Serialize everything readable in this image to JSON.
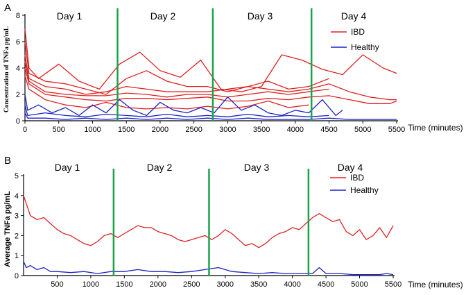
{
  "chart_data": [
    {
      "type": "line",
      "panel_label": "A",
      "ylabel": "Concentration of TNFa pg/mL",
      "xlabel": "Time (minutes)",
      "xlim": [
        0,
        5500
      ],
      "ylim": [
        0,
        8
      ],
      "xticks": [
        0,
        500,
        1000,
        1500,
        2000,
        2500,
        3000,
        3500,
        4000,
        4500,
        5000,
        5500
      ],
      "yticks": [
        0,
        2,
        4,
        6,
        8
      ],
      "day_labels": [
        "Day 1",
        "Day 2",
        "Day 3",
        "Day 4"
      ],
      "day_dividers": [
        1370,
        2780,
        4240
      ],
      "legend": [
        {
          "name": "IBD",
          "color": "#e02020"
        },
        {
          "name": "Healthy",
          "color": "#1a22c8"
        }
      ],
      "series": [
        {
          "name": "IBD",
          "group": "IBD",
          "color": "#e02020",
          "x": [
            0,
            60,
            200,
            500,
            800,
            1100,
            1400,
            1700,
            2000,
            2300,
            2600,
            2900,
            3200,
            3500,
            3800,
            4100,
            4400,
            4700,
            5000,
            5300,
            5500
          ],
          "y": [
            7.0,
            4.0,
            3.2,
            4.3,
            3.0,
            2.4,
            4.3,
            5.2,
            3.8,
            3.3,
            4.6,
            2.4,
            2.2,
            2.6,
            5.0,
            4.6,
            3.9,
            3.5,
            5.0,
            4.0,
            3.6
          ]
        },
        {
          "name": "IBD",
          "group": "IBD",
          "color": "#e02020",
          "x": [
            0,
            60,
            300,
            600,
            900,
            1200,
            1500,
            1800,
            2100,
            2400,
            2700,
            3000,
            3300,
            3600,
            3900,
            4200,
            4500
          ],
          "y": [
            6.0,
            3.6,
            3.0,
            2.8,
            2.4,
            2.0,
            3.2,
            3.8,
            3.0,
            2.6,
            2.6,
            2.2,
            2.6,
            3.0,
            2.4,
            2.6,
            3.2
          ]
        },
        {
          "name": "IBD",
          "group": "IBD",
          "color": "#e02020",
          "x": [
            0,
            60,
            300,
            600,
            900,
            1200,
            1500,
            1800,
            2100,
            2400,
            2700,
            3000,
            3300,
            3600,
            3900,
            4200,
            4500,
            4800,
            5100,
            5400,
            5500
          ],
          "y": [
            5.0,
            3.2,
            2.6,
            2.4,
            2.0,
            2.2,
            2.6,
            2.4,
            2.2,
            2.2,
            2.2,
            2.4,
            2.6,
            2.4,
            2.2,
            2.4,
            2.8,
            2.2,
            1.8,
            1.6,
            1.6
          ]
        },
        {
          "name": "IBD",
          "group": "IBD",
          "color": "#e02020",
          "x": [
            0,
            60,
            300,
            600,
            900,
            1200,
            1500,
            1800,
            2100,
            2400,
            2700,
            3000,
            3300,
            3600,
            3900,
            4200,
            4500
          ],
          "y": [
            4.5,
            3.0,
            2.2,
            2.0,
            1.9,
            1.9,
            2.1,
            2.0,
            1.8,
            2.0,
            2.0,
            1.8,
            2.0,
            2.2,
            2.0,
            2.2,
            2.4
          ]
        },
        {
          "name": "IBD",
          "group": "IBD",
          "color": "#e02020",
          "x": [
            0,
            60,
            300,
            600,
            900,
            1200,
            1500,
            1800,
            2100,
            2400,
            2700,
            3000,
            3300,
            3600,
            3900,
            4200,
            4500,
            4800,
            5100,
            5400,
            5500
          ],
          "y": [
            4.0,
            2.8,
            2.0,
            1.8,
            1.6,
            1.5,
            1.7,
            1.7,
            1.6,
            1.7,
            1.8,
            1.5,
            1.5,
            1.7,
            1.6,
            1.8,
            1.9,
            1.6,
            1.3,
            1.3,
            1.5
          ]
        },
        {
          "name": "IBD",
          "group": "IBD",
          "color": "#e02020",
          "x": [
            0,
            60,
            300,
            600,
            900,
            1200,
            1500,
            1800,
            2100,
            2400,
            2700,
            3000,
            3300,
            3600,
            3900,
            4200
          ],
          "y": [
            3.4,
            2.4,
            1.6,
            1.2,
            1.0,
            1.4,
            1.0,
            0.9,
            1.0,
            0.9,
            1.1,
            0.9,
            1.1,
            1.5,
            1.0,
            1.2
          ]
        },
        {
          "name": "Healthy",
          "group": "Healthy",
          "color": "#1a22c8",
          "x": [
            0,
            40,
            200,
            400,
            600,
            800,
            1000,
            1200,
            1400,
            1600,
            1800,
            2000,
            2200,
            2400,
            2600,
            2800,
            3000,
            3200,
            3400,
            3600,
            3800,
            4000,
            4200,
            4400,
            4600,
            4700
          ],
          "y": [
            2.0,
            0.8,
            1.2,
            0.6,
            1.0,
            0.4,
            1.2,
            0.6,
            1.6,
            0.8,
            0.4,
            1.4,
            0.8,
            0.6,
            1.0,
            0.6,
            1.8,
            0.8,
            1.2,
            0.6,
            0.4,
            0.8,
            0.6,
            1.6,
            0.4,
            0.8
          ]
        },
        {
          "name": "Healthy",
          "group": "Healthy",
          "color": "#1a22c8",
          "x": [
            0,
            40,
            300,
            600,
            900,
            1200,
            1500,
            1800,
            2100,
            2400,
            2700,
            3000,
            3300,
            3600,
            3900,
            4200,
            4500
          ],
          "y": [
            1.2,
            0.4,
            0.6,
            0.4,
            0.3,
            0.5,
            0.4,
            0.3,
            0.5,
            0.3,
            0.4,
            0.3,
            0.5,
            0.3,
            0.4,
            0.3,
            0.4
          ]
        },
        {
          "name": "Healthy",
          "group": "Healthy",
          "color": "#1a22c8",
          "x": [
            0,
            40,
            300,
            600,
            900,
            1200,
            1500,
            1800,
            2100,
            2400,
            2700,
            3000,
            3300,
            3600,
            3900,
            4200,
            4500,
            4800,
            5100,
            5400,
            5500
          ],
          "y": [
            0.6,
            0.2,
            0.2,
            0.1,
            0.2,
            0.1,
            0.2,
            0.1,
            0.2,
            0.1,
            0.2,
            0.1,
            0.2,
            0.1,
            0.1,
            0.1,
            0.2,
            0.1,
            0.1,
            0.1,
            0.1
          ]
        }
      ]
    },
    {
      "type": "line",
      "panel_label": "B",
      "ylabel": "Average TNFa pg/mL",
      "xlabel": "Time (minutes)",
      "xlim": [
        0,
        5500
      ],
      "ylim": [
        0,
        5
      ],
      "xticks": [
        500,
        1000,
        1500,
        2000,
        2500,
        3000,
        3500,
        4000,
        4500,
        5000,
        5500
      ],
      "yticks": [
        0,
        1,
        2,
        3,
        4,
        5
      ],
      "day_labels": [
        "Day 1",
        "Day 2",
        "Day 3",
        "Day 4"
      ],
      "day_dividers": [
        1340,
        2760,
        4240
      ],
      "legend": [
        {
          "name": "IBD",
          "color": "#e02020"
        },
        {
          "name": "Healthy",
          "color": "#1a22c8"
        }
      ],
      "series": [
        {
          "name": "IBD",
          "group": "IBD",
          "color": "#e02020",
          "x": [
            0,
            40,
            100,
            200,
            300,
            400,
            500,
            600,
            700,
            800,
            900,
            1000,
            1100,
            1200,
            1300,
            1400,
            1500,
            1600,
            1700,
            1800,
            1900,
            2000,
            2100,
            2200,
            2300,
            2400,
            2500,
            2600,
            2700,
            2800,
            2900,
            3000,
            3100,
            3200,
            3300,
            3400,
            3500,
            3600,
            3700,
            3800,
            3900,
            4000,
            4100,
            4200,
            4300,
            4400,
            4500,
            4600,
            4700,
            4800,
            4900,
            5000,
            5100,
            5200,
            5300,
            5400,
            5500
          ],
          "y": [
            4.0,
            3.6,
            3.0,
            2.8,
            2.9,
            2.6,
            2.3,
            2.1,
            2.0,
            1.8,
            1.6,
            1.5,
            1.7,
            2.0,
            2.1,
            1.9,
            2.1,
            2.3,
            2.5,
            2.4,
            2.4,
            2.2,
            2.1,
            2.0,
            1.8,
            1.7,
            1.8,
            1.9,
            2.0,
            1.8,
            2.0,
            2.3,
            2.1,
            1.8,
            1.5,
            1.6,
            1.4,
            1.6,
            1.9,
            2.1,
            2.2,
            2.4,
            2.3,
            2.6,
            2.9,
            3.1,
            2.9,
            2.7,
            2.8,
            2.2,
            2.0,
            2.3,
            1.8,
            2.0,
            2.4,
            1.9,
            2.5
          ]
        },
        {
          "name": "Healthy",
          "group": "Healthy",
          "color": "#1a22c8",
          "x": [
            0,
            40,
            100,
            200,
            300,
            400,
            500,
            700,
            900,
            1100,
            1300,
            1500,
            1700,
            1900,
            2100,
            2300,
            2500,
            2700,
            2900,
            3100,
            3300,
            3500,
            3700,
            3900,
            4100,
            4300,
            4400,
            4500,
            4700,
            4900,
            5100,
            5300,
            5400,
            5500
          ],
          "y": [
            0.7,
            0.4,
            0.5,
            0.3,
            0.4,
            0.2,
            0.2,
            0.15,
            0.2,
            0.1,
            0.2,
            0.2,
            0.3,
            0.2,
            0.2,
            0.15,
            0.2,
            0.3,
            0.4,
            0.2,
            0.15,
            0.1,
            0.15,
            0.1,
            0.1,
            0.1,
            0.4,
            0.1,
            0.1,
            0.05,
            0.05,
            0.05,
            0.1,
            0.05
          ]
        }
      ]
    }
  ]
}
